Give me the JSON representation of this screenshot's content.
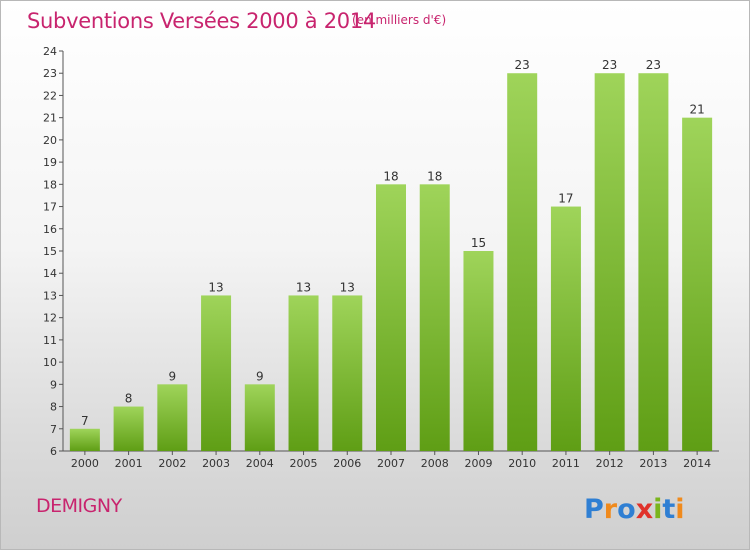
{
  "title": "Subventions Versées 2000 à 2014",
  "unit_note": "(en milliers d'€)",
  "commune": "DEMIGNY",
  "logo_text": "Proxiti",
  "colors": {
    "bar_top": "#9fd45a",
    "bar_bottom": "#5f9e15",
    "title": "#c8246e"
  },
  "chart_data": {
    "type": "bar",
    "title": "Subventions Versées 2000 à 2014",
    "xlabel": "",
    "ylabel": "",
    "categories": [
      "2000",
      "2001",
      "2002",
      "2003",
      "2004",
      "2005",
      "2006",
      "2007",
      "2008",
      "2009",
      "2010",
      "2011",
      "2012",
      "2013",
      "2014"
    ],
    "values": [
      7,
      8,
      9,
      13,
      9,
      13,
      13,
      18,
      18,
      15,
      23,
      17,
      23,
      23,
      21
    ],
    "ylim": [
      6,
      24
    ],
    "yticks": [
      6,
      7,
      8,
      9,
      10,
      11,
      12,
      13,
      14,
      15,
      16,
      17,
      18,
      19,
      20,
      21,
      22,
      23,
      24
    ],
    "grid": false,
    "legend": "none"
  }
}
